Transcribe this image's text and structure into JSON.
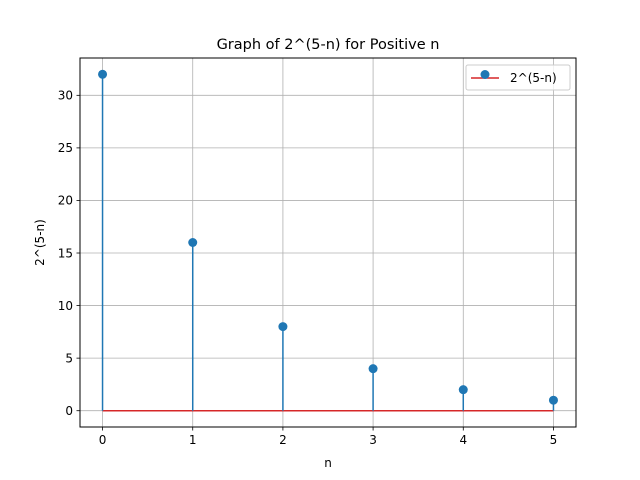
{
  "chart_data": {
    "type": "stem",
    "title": "Graph of 2^(5-n) for Positive n",
    "xlabel": "n",
    "ylabel": "2^(5-n)",
    "x": [
      0,
      1,
      2,
      3,
      4,
      5
    ],
    "series": [
      {
        "name": "2^(5-n)",
        "values": [
          32,
          16,
          8,
          4,
          2,
          1
        ]
      }
    ],
    "xlim": [
      -0.25,
      5.25
    ],
    "ylim": [
      -1.55,
      33.55
    ],
    "xticks": [
      0,
      1,
      2,
      3,
      4,
      5
    ],
    "yticks": [
      0,
      5,
      10,
      15,
      20,
      25,
      30
    ],
    "grid": true,
    "legend_position": "top-right",
    "colors": {
      "stem": "#1f77b4",
      "marker": "#1f77b4",
      "baseline": "#d62728",
      "grid": "#b0b0b0"
    }
  }
}
